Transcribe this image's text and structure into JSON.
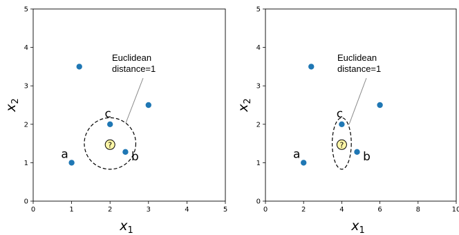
{
  "chart_data": [
    {
      "type": "scatter",
      "xlim": [
        0,
        5
      ],
      "ylim": [
        0,
        5
      ],
      "xticks": [
        "0",
        "1",
        "2",
        "3",
        "4",
        "5"
      ],
      "yticks": [
        "0",
        "1",
        "2",
        "3",
        "4",
        "5"
      ],
      "xlabel_main": "x",
      "xlabel_sub": "1",
      "ylabel_main": "x",
      "ylabel_sub": "2",
      "point_color": "#1f77b4",
      "points": [
        {
          "x": 1.0,
          "y": 1.0,
          "label": "a"
        },
        {
          "x": 2.4,
          "y": 1.28,
          "label": "b"
        },
        {
          "x": 2.0,
          "y": 2.0,
          "label": "c"
        },
        {
          "x": 1.2,
          "y": 3.5,
          "label": ""
        },
        {
          "x": 3.0,
          "y": 2.5,
          "label": ""
        }
      ],
      "query": {
        "x": 2.0,
        "y": 1.47,
        "symbol": "?",
        "fill": "#fff7a8"
      },
      "circle": {
        "cx": 2.0,
        "cy": 1.5,
        "radius": 0.67
      },
      "annotation": {
        "lines": [
          "Euclidean",
          "distance=1"
        ]
      }
    },
    {
      "type": "scatter",
      "xlim": [
        0,
        10
      ],
      "ylim": [
        0,
        5
      ],
      "xticks": [
        "0",
        "2",
        "4",
        "6",
        "8",
        "10"
      ],
      "yticks": [
        "0",
        "1",
        "2",
        "3",
        "4",
        "5"
      ],
      "xlabel_main": "x",
      "xlabel_sub": "1",
      "ylabel_main": "x",
      "ylabel_sub": "2",
      "point_color": "#1f77b4",
      "points": [
        {
          "x": 2.0,
          "y": 1.0,
          "label": "a"
        },
        {
          "x": 4.8,
          "y": 1.28,
          "label": "b"
        },
        {
          "x": 4.0,
          "y": 2.0,
          "label": "c"
        },
        {
          "x": 2.4,
          "y": 3.5,
          "label": ""
        },
        {
          "x": 6.0,
          "y": 2.5,
          "label": ""
        }
      ],
      "query": {
        "x": 4.0,
        "y": 1.47,
        "symbol": "?",
        "fill": "#fff7a8"
      },
      "circle": {
        "cx": 4.0,
        "cy": 1.5,
        "rx": 0.5,
        "ry": 0.67
      },
      "annotation": {
        "lines": [
          "Euclidean",
          "distance=1"
        ]
      }
    }
  ]
}
